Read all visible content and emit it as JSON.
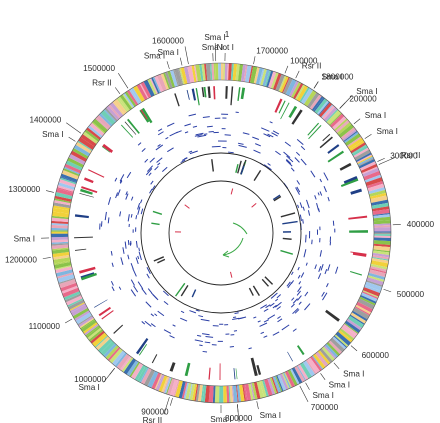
{
  "genome_map": {
    "total_length": 1650000,
    "origin": "1",
    "position_labels": [
      {
        "text": "100000",
        "bp": 100000
      },
      {
        "text": "200000",
        "bp": 200000
      },
      {
        "text": "300000",
        "bp": 300000
      },
      {
        "text": "400000",
        "bp": 400000
      },
      {
        "text": "500000",
        "bp": 500000
      },
      {
        "text": "600000",
        "bp": 600000
      },
      {
        "text": "700000",
        "bp": 700000
      },
      {
        "text": "800000",
        "bp": 800000
      },
      {
        "text": "900000",
        "bp": 900000
      },
      {
        "text": "1000000",
        "bp": 1000000
      },
      {
        "text": "1100000",
        "bp": 1100000
      },
      {
        "text": "1200000",
        "bp": 1200000
      },
      {
        "text": "1300000",
        "bp": 1300000
      },
      {
        "text": "1400000",
        "bp": 1400000
      },
      {
        "text": "1500000",
        "bp": 1500000
      },
      {
        "text": "1600000",
        "bp": 1600000
      },
      {
        "text": "1700000",
        "bp": 1700000
      },
      {
        "text": "1800000",
        "bp": 1800000
      }
    ],
    "restriction_sites": [
      {
        "enzyme": "Sma I",
        "bp": 1642000
      },
      {
        "enzyme": "Sma I",
        "bp": 1638000
      },
      {
        "enzyme": "Not I",
        "bp": 6000
      },
      {
        "enzyme": "Rsr II",
        "bp": 118000
      },
      {
        "enzyme": "Sma I",
        "bp": 150000
      },
      {
        "enzyme": "Sma I",
        "bp": 200000
      },
      {
        "enzyme": "Sma I",
        "bp": 232000
      },
      {
        "enzyme": "Sma I",
        "bp": 260000
      },
      {
        "enzyme": "Rsr II",
        "bp": 305000
      },
      {
        "enzyme": "Sma I",
        "bp": 637000
      },
      {
        "enzyme": "Sma I",
        "bp": 663000
      },
      {
        "enzyme": "Sma I",
        "bp": 690000
      },
      {
        "enzyme": "Sma I",
        "bp": 770000
      },
      {
        "enzyme": "Sma I",
        "bp": 800000
      },
      {
        "enzyme": "Sma I",
        "bp": 825000
      },
      {
        "enzyme": "Rsr II",
        "bp": 905000
      },
      {
        "enzyme": "Sma I",
        "bp": 1000000
      },
      {
        "enzyme": "Sma I",
        "bp": 1230000
      },
      {
        "enzyme": "Sma I",
        "bp": 1385000
      },
      {
        "enzyme": "Rsr II",
        "bp": 1485000
      },
      {
        "enzyme": "Sma I",
        "bp": 1590000
      },
      {
        "enzyme": "Sma I",
        "bp": 1570000
      }
    ],
    "colors": {
      "orf_palette": [
        "#e8a6b8",
        "#f2d13a",
        "#8bc34a",
        "#c9e27a",
        "#7fb6df",
        "#3a6fb0",
        "#d84a4a",
        "#c7a0d4",
        "#f6d08a",
        "#9e9e9e",
        "#e86a8a",
        "#6fcfb5",
        "#b5d65a",
        "#f5b0c8",
        "#a0c8ef"
      ],
      "rna": "#2f9e44",
      "pseudogene": "#1f3f86",
      "trna_dark": "#333333",
      "red_feature": "#d6304a",
      "blue_ticks": "#2b3fa6",
      "green_arrow": "#39a845",
      "ring": "#222222"
    }
  }
}
